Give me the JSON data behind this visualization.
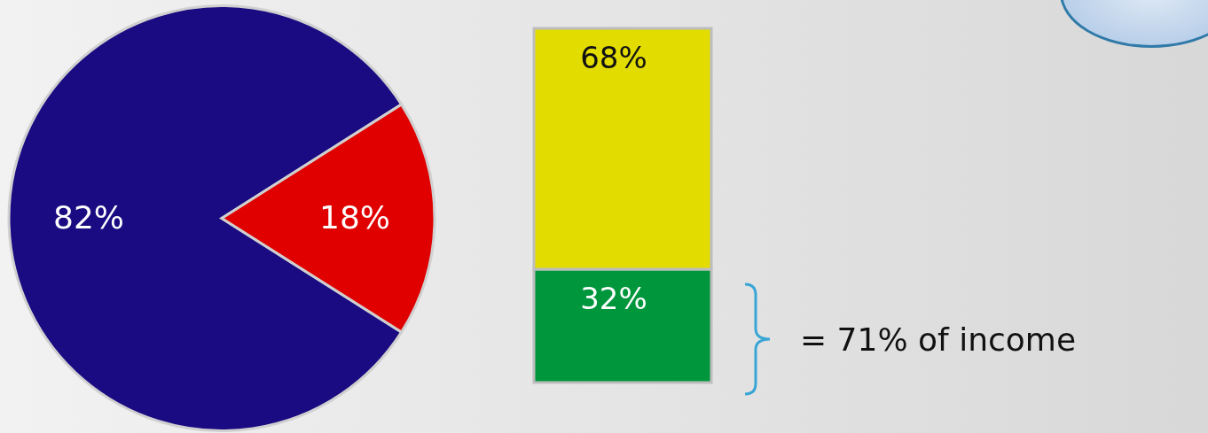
{
  "chart_data": [
    {
      "type": "pie",
      "categories": [
        null,
        null
      ],
      "values": [
        82,
        18
      ],
      "colors": [
        "#1a0b82",
        "#e00000"
      ],
      "value_labels": [
        "82%",
        "18%"
      ]
    },
    {
      "type": "bar",
      "stacked": true,
      "categories": [
        null
      ],
      "tick_labels": false,
      "series": [
        {
          "color": "#00963c",
          "values": [
            32
          ],
          "value_labels": [
            "32%"
          ]
        },
        {
          "color": "#e2dc00",
          "values": [
            68
          ],
          "value_labels": [
            "68%"
          ]
        }
      ],
      "annotations": [
        "= 71% of income"
      ]
    }
  ]
}
